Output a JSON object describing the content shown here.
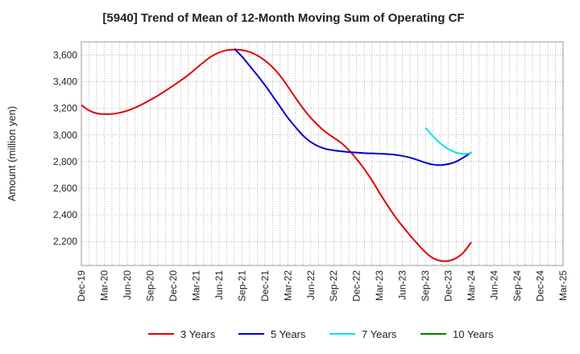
{
  "chart_data": {
    "type": "line",
    "title": "[5940]  Trend of Mean of 12-Month Moving Sum of Operating CF",
    "ylabel": "Amount (million yen)",
    "xlabel": "",
    "ylim": [
      2020,
      3700
    ],
    "yticks": [
      2200,
      2400,
      2600,
      2800,
      3000,
      3200,
      3400,
      3600
    ],
    "ytick_labels": [
      "2,200",
      "2,400",
      "2,600",
      "2,800",
      "3,000",
      "3,200",
      "3,400",
      "3,600"
    ],
    "x_range_months": [
      0,
      63
    ],
    "xticks": [
      {
        "m": 0,
        "label": "Dec-19"
      },
      {
        "m": 3,
        "label": "Mar-20"
      },
      {
        "m": 6,
        "label": "Jun-20"
      },
      {
        "m": 9,
        "label": "Sep-20"
      },
      {
        "m": 12,
        "label": "Dec-20"
      },
      {
        "m": 15,
        "label": "Mar-21"
      },
      {
        "m": 18,
        "label": "Jun-21"
      },
      {
        "m": 21,
        "label": "Sep-21"
      },
      {
        "m": 24,
        "label": "Dec-21"
      },
      {
        "m": 27,
        "label": "Mar-22"
      },
      {
        "m": 30,
        "label": "Jun-22"
      },
      {
        "m": 33,
        "label": "Sep-22"
      },
      {
        "m": 36,
        "label": "Dec-22"
      },
      {
        "m": 39,
        "label": "Mar-23"
      },
      {
        "m": 42,
        "label": "Jun-23"
      },
      {
        "m": 45,
        "label": "Sep-23"
      },
      {
        "m": 48,
        "label": "Dec-23"
      },
      {
        "m": 51,
        "label": "Mar-24"
      },
      {
        "m": 54,
        "label": "Jun-24"
      },
      {
        "m": 57,
        "label": "Sep-24"
      },
      {
        "m": 60,
        "label": "Dec-24"
      },
      {
        "m": 63,
        "label": "Mar-25"
      }
    ],
    "grid": true,
    "legend_position": "bottom",
    "series": [
      {
        "name": "3 Years",
        "color": "#e00000",
        "points": [
          [
            0,
            3225
          ],
          [
            1,
            3185
          ],
          [
            2,
            3163
          ],
          [
            3,
            3157
          ],
          [
            4,
            3158
          ],
          [
            5,
            3167
          ],
          [
            6,
            3183
          ],
          [
            7,
            3205
          ],
          [
            8,
            3232
          ],
          [
            9,
            3263
          ],
          [
            10,
            3296
          ],
          [
            11,
            3332
          ],
          [
            12,
            3370
          ],
          [
            13,
            3410
          ],
          [
            14,
            3452
          ],
          [
            15,
            3500
          ],
          [
            16,
            3548
          ],
          [
            17,
            3590
          ],
          [
            18,
            3620
          ],
          [
            19,
            3637
          ],
          [
            20,
            3642
          ],
          [
            21,
            3638
          ],
          [
            22,
            3624
          ],
          [
            23,
            3598
          ],
          [
            24,
            3560
          ],
          [
            25,
            3510
          ],
          [
            26,
            3445
          ],
          [
            27,
            3365
          ],
          [
            28,
            3280
          ],
          [
            29,
            3200
          ],
          [
            30,
            3130
          ],
          [
            31,
            3070
          ],
          [
            32,
            3020
          ],
          [
            33,
            2980
          ],
          [
            34,
            2940
          ],
          [
            35,
            2885
          ],
          [
            36,
            2820
          ],
          [
            37,
            2745
          ],
          [
            38,
            2660
          ],
          [
            39,
            2565
          ],
          [
            40,
            2475
          ],
          [
            41,
            2390
          ],
          [
            42,
            2315
          ],
          [
            43,
            2245
          ],
          [
            44,
            2180
          ],
          [
            45,
            2120
          ],
          [
            46,
            2075
          ],
          [
            47,
            2055
          ],
          [
            48,
            2055
          ],
          [
            49,
            2075
          ],
          [
            50,
            2120
          ],
          [
            51,
            2195
          ]
        ]
      },
      {
        "name": "5 Years",
        "color": "#0000cc",
        "points": [
          [
            20,
            3648
          ],
          [
            21,
            3590
          ],
          [
            22,
            3520
          ],
          [
            23,
            3450
          ],
          [
            24,
            3375
          ],
          [
            25,
            3295
          ],
          [
            26,
            3212
          ],
          [
            27,
            3130
          ],
          [
            28,
            3060
          ],
          [
            29,
            2995
          ],
          [
            30,
            2948
          ],
          [
            31,
            2915
          ],
          [
            32,
            2895
          ],
          [
            33,
            2885
          ],
          [
            34,
            2878
          ],
          [
            35,
            2872
          ],
          [
            36,
            2868
          ],
          [
            37,
            2864
          ],
          [
            38,
            2862
          ],
          [
            39,
            2860
          ],
          [
            40,
            2857
          ],
          [
            41,
            2852
          ],
          [
            42,
            2843
          ],
          [
            43,
            2830
          ],
          [
            44,
            2812
          ],
          [
            45,
            2792
          ],
          [
            46,
            2778
          ],
          [
            47,
            2774
          ],
          [
            48,
            2782
          ],
          [
            49,
            2800
          ],
          [
            50,
            2832
          ],
          [
            51,
            2870
          ]
        ]
      },
      {
        "name": "7 Years",
        "color": "#00e5e5",
        "points": [
          [
            45,
            3055
          ],
          [
            46,
            2990
          ],
          [
            47,
            2935
          ],
          [
            48,
            2895
          ],
          [
            49,
            2868
          ],
          [
            50,
            2858
          ],
          [
            51,
            2865
          ]
        ]
      },
      {
        "name": "10 Years",
        "color": "#008000",
        "points": []
      }
    ]
  }
}
